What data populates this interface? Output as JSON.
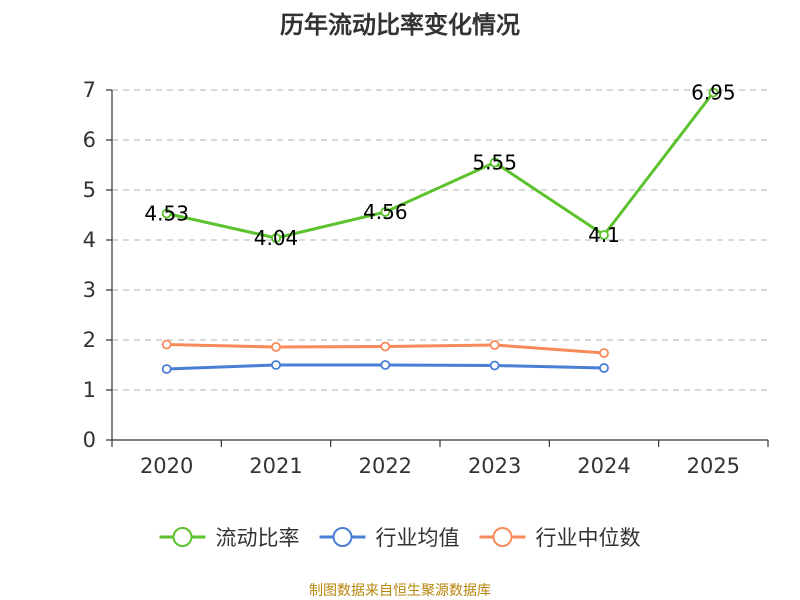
{
  "chart_data": {
    "type": "line",
    "title": "历年流动比率变化情况",
    "categories": [
      "2020",
      "2021",
      "2022",
      "2023",
      "2024",
      "2025"
    ],
    "ylim": [
      0,
      7
    ],
    "yticks": [
      0,
      1,
      2,
      3,
      4,
      5,
      6,
      7
    ],
    "grid": true,
    "legend_position": "bottom",
    "series": [
      {
        "name": "流动比率",
        "color": "#5cc22d",
        "values": [
          4.53,
          4.04,
          4.56,
          5.55,
          4.1,
          6.95
        ],
        "labels": [
          "4.53",
          "4.04",
          "4.56",
          "5.55",
          "4.1",
          "6.95"
        ],
        "show_labels": true
      },
      {
        "name": "行业均值",
        "color": "#4a7fd6",
        "values": [
          1.42,
          1.5,
          1.5,
          1.49,
          1.44,
          null
        ],
        "show_labels": false
      },
      {
        "name": "行业中位数",
        "color": "#f98a5a",
        "values": [
          1.91,
          1.86,
          1.87,
          1.9,
          1.74,
          null
        ],
        "show_labels": false
      }
    ]
  },
  "source": "制图数据来自恒生聚源数据库"
}
